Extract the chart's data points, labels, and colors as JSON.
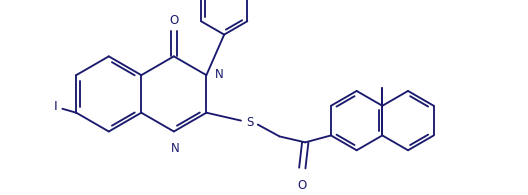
{
  "bg_color": "#ffffff",
  "line_color": "#1a1a6e",
  "lw": 1.35,
  "fs": 8.5,
  "figsize": [
    5.28,
    1.95
  ],
  "dpi": 100,
  "xlim": [
    0,
    528
  ],
  "ylim": [
    0,
    195
  ]
}
